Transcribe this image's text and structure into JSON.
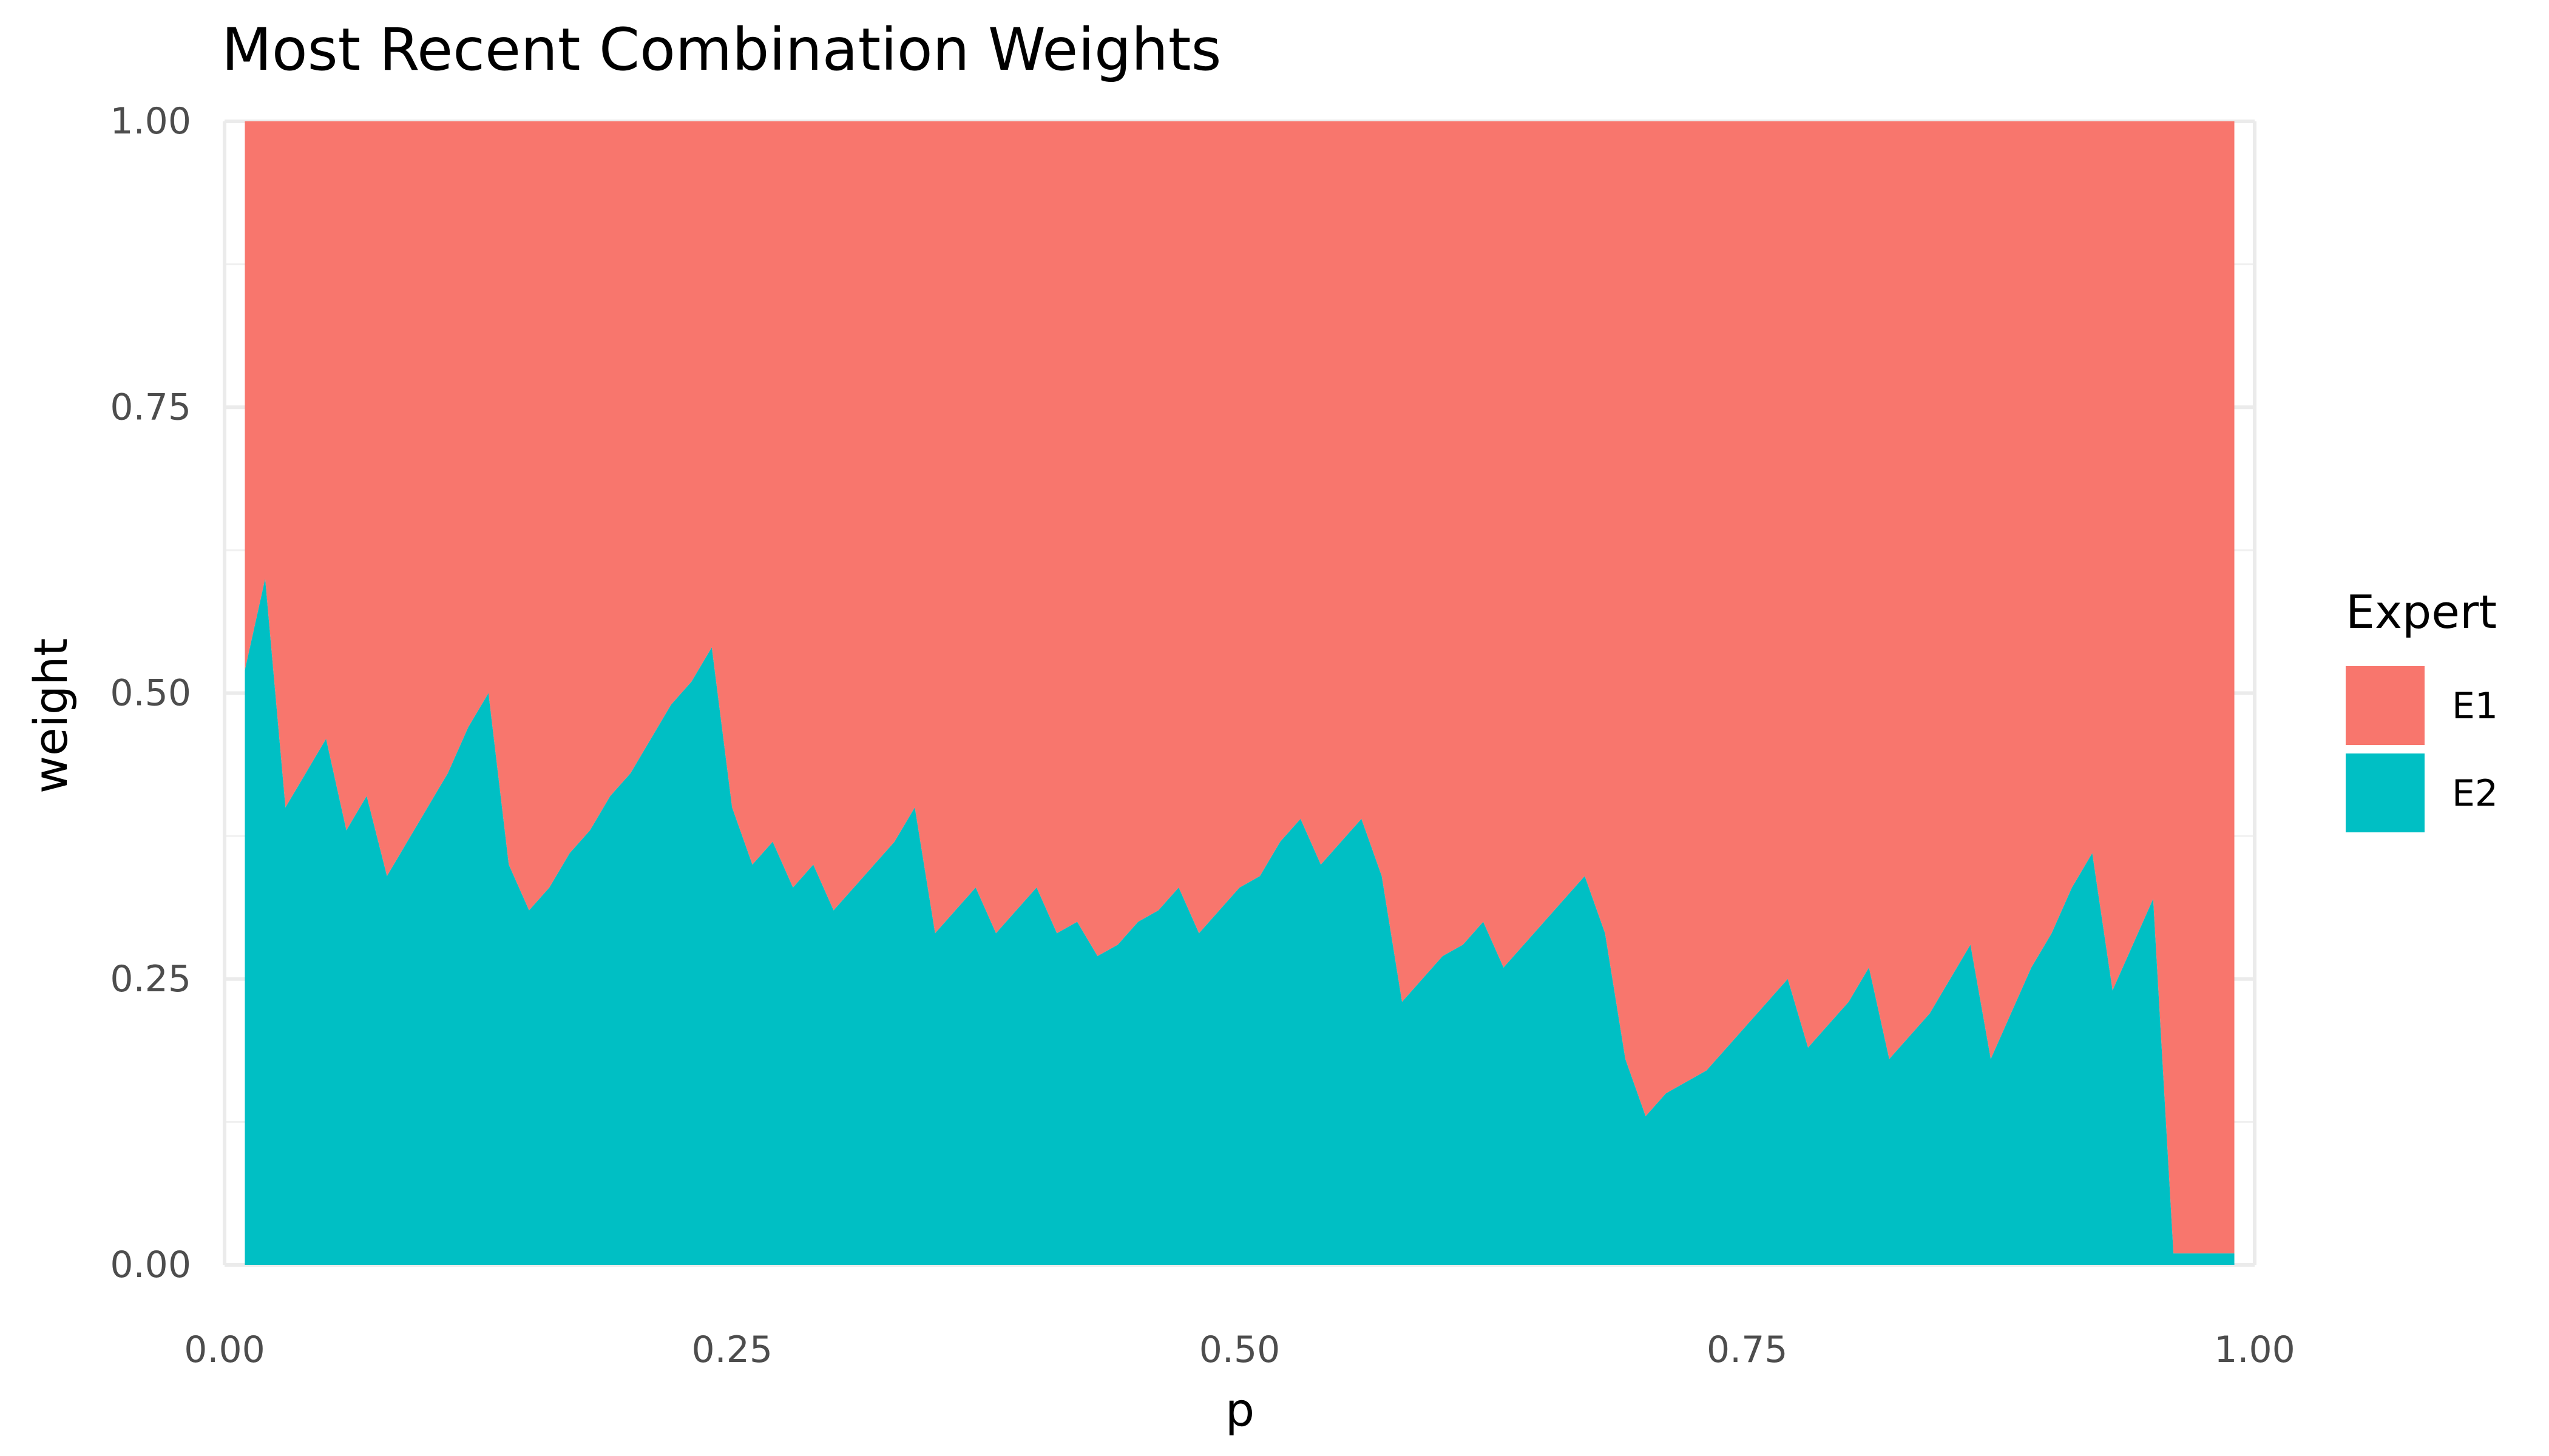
{
  "chart_data": {
    "type": "area",
    "title": "Most Recent Combination Weights",
    "xlabel": "p",
    "ylabel": "weight",
    "xlim": [
      0,
      1
    ],
    "ylim": [
      0,
      1
    ],
    "x_ticks": [
      "0.00",
      "0.25",
      "0.50",
      "0.75",
      "1.00"
    ],
    "y_ticks": [
      "0.00",
      "0.25",
      "0.50",
      "0.75",
      "1.00"
    ],
    "grid": true,
    "legend": {
      "title": "Expert",
      "placement": "right",
      "entries": [
        {
          "label": "E1",
          "color": "#F8766D"
        },
        {
          "label": "E2",
          "color": "#00BFC4"
        }
      ]
    },
    "stacked": true,
    "x": [
      0.01,
      0.02,
      0.03,
      0.04,
      0.05,
      0.06,
      0.07,
      0.08,
      0.09,
      0.1,
      0.11,
      0.12,
      0.13,
      0.14,
      0.15,
      0.16,
      0.17,
      0.18,
      0.19,
      0.2,
      0.21,
      0.22,
      0.23,
      0.24,
      0.25,
      0.26,
      0.27,
      0.28,
      0.29,
      0.3,
      0.31,
      0.32,
      0.33,
      0.34,
      0.35,
      0.36,
      0.37,
      0.38,
      0.39,
      0.4,
      0.41,
      0.42,
      0.43,
      0.44,
      0.45,
      0.46,
      0.47,
      0.48,
      0.49,
      0.5,
      0.51,
      0.52,
      0.53,
      0.54,
      0.55,
      0.56,
      0.57,
      0.58,
      0.59,
      0.6,
      0.61,
      0.62,
      0.63,
      0.64,
      0.65,
      0.66,
      0.67,
      0.68,
      0.69,
      0.7,
      0.71,
      0.72,
      0.73,
      0.74,
      0.75,
      0.76,
      0.77,
      0.78,
      0.79,
      0.8,
      0.81,
      0.82,
      0.83,
      0.84,
      0.85,
      0.86,
      0.87,
      0.88,
      0.89,
      0.9,
      0.91,
      0.92,
      0.93,
      0.94,
      0.95,
      0.96,
      0.97,
      0.98,
      0.99
    ],
    "series": [
      {
        "name": "E2",
        "color": "#00BFC4",
        "values": [
          0.52,
          0.6,
          0.4,
          0.43,
          0.46,
          0.38,
          0.41,
          0.34,
          0.37,
          0.4,
          0.43,
          0.47,
          0.5,
          0.35,
          0.31,
          0.33,
          0.36,
          0.38,
          0.41,
          0.43,
          0.46,
          0.49,
          0.51,
          0.54,
          0.4,
          0.35,
          0.37,
          0.33,
          0.35,
          0.31,
          0.33,
          0.35,
          0.37,
          0.4,
          0.29,
          0.31,
          0.33,
          0.29,
          0.31,
          0.33,
          0.29,
          0.3,
          0.27,
          0.28,
          0.3,
          0.31,
          0.33,
          0.29,
          0.31,
          0.33,
          0.34,
          0.37,
          0.39,
          0.35,
          0.37,
          0.39,
          0.34,
          0.23,
          0.25,
          0.27,
          0.28,
          0.3,
          0.26,
          0.28,
          0.3,
          0.32,
          0.34,
          0.29,
          0.18,
          0.13,
          0.15,
          0.16,
          0.17,
          0.19,
          0.21,
          0.23,
          0.25,
          0.19,
          0.21,
          0.23,
          0.26,
          0.18,
          0.2,
          0.22,
          0.25,
          0.28,
          0.18,
          0.22,
          0.26,
          0.29,
          0.33,
          0.36,
          0.24,
          0.28,
          0.32,
          0.01,
          0.01,
          0.01,
          0.01
        ]
      },
      {
        "name": "E1",
        "color": "#F8766D",
        "values": [
          0.48,
          0.4,
          0.6,
          0.57,
          0.54,
          0.62,
          0.59,
          0.66,
          0.63,
          0.6,
          0.57,
          0.53,
          0.5,
          0.65,
          0.69,
          0.67,
          0.64,
          0.62,
          0.59,
          0.57,
          0.54,
          0.51,
          0.49,
          0.46,
          0.6,
          0.65,
          0.63,
          0.67,
          0.65,
          0.69,
          0.67,
          0.65,
          0.63,
          0.6,
          0.71,
          0.69,
          0.67,
          0.71,
          0.69,
          0.67,
          0.71,
          0.7,
          0.73,
          0.72,
          0.7,
          0.69,
          0.67,
          0.71,
          0.69,
          0.67,
          0.66,
          0.63,
          0.61,
          0.65,
          0.63,
          0.61,
          0.66,
          0.77,
          0.75,
          0.73,
          0.72,
          0.7,
          0.74,
          0.72,
          0.7,
          0.68,
          0.66,
          0.71,
          0.82,
          0.87,
          0.85,
          0.84,
          0.83,
          0.81,
          0.79,
          0.77,
          0.75,
          0.81,
          0.79,
          0.77,
          0.74,
          0.82,
          0.8,
          0.78,
          0.75,
          0.72,
          0.82,
          0.78,
          0.74,
          0.71,
          0.67,
          0.64,
          0.76,
          0.72,
          0.68,
          0.99,
          0.99,
          0.99,
          0.99
        ]
      }
    ]
  }
}
